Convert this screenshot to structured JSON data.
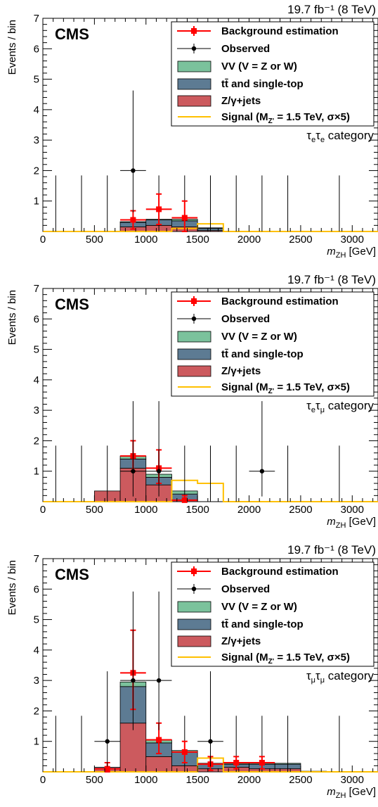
{
  "lumi_label": "19.7 fb⁻¹ (8 TeV)",
  "experiment": "CMS",
  "ylabel": "Events / bin",
  "xlabel_main": "m",
  "xlabel_sub": "ZH",
  "xlabel_unit": "[GeV]",
  "legend": {
    "bkg": "Background estimation",
    "obs": "Observed",
    "vv": "VV (V = Z or W)",
    "tt": "tt̄ and single-top",
    "zj": "Z/γ+jets",
    "sig": "Signal (M",
    "sig_sub": "Z'",
    "sig_rest": " = 1.5 TeV, σ×5)"
  },
  "colors": {
    "zj": "#cc5a5e",
    "tt": "#5d7b93",
    "vv": "#7bc29c",
    "signal": "#ffc000",
    "bkg": "#ff0000",
    "obs": "#000000"
  },
  "chart_data": [
    {
      "type": "histogram",
      "category": "τeτe category",
      "category_parts": [
        "τ",
        "e",
        "τ",
        "e",
        " category"
      ],
      "xlim": [
        0,
        3250
      ],
      "ylim": [
        0,
        7
      ],
      "xticks": [
        0,
        500,
        1000,
        1500,
        2000,
        2500,
        3000
      ],
      "yticks": [
        1,
        2,
        3,
        4,
        5,
        6,
        7
      ],
      "bin_edges": [
        0,
        250,
        500,
        750,
        1000,
        1250,
        1500,
        1750,
        2000,
        2250,
        2500,
        2750,
        3000,
        3250
      ],
      "stack": {
        "zjets": [
          0,
          0,
          0,
          0.15,
          0.2,
          0.15,
          0.03,
          0,
          0,
          0,
          0,
          0,
          0
        ],
        "ttbar": [
          0,
          0,
          0,
          0.15,
          0.18,
          0.2,
          0.07,
          0,
          0,
          0,
          0,
          0,
          0
        ],
        "vv": [
          0,
          0,
          0,
          0.02,
          0.02,
          0.05,
          0.02,
          0,
          0,
          0,
          0,
          0,
          0
        ]
      },
      "signal": [
        0,
        0,
        0,
        0,
        0,
        0.1,
        0.25,
        0,
        0,
        0,
        0,
        0,
        0
      ],
      "background_estimation": [
        {
          "x": 875,
          "y": 0.38,
          "err_up": 0.3,
          "err_down": 0.3
        },
        {
          "x": 1125,
          "y": 0.73,
          "err_up": 0.5,
          "err_down": 0.5
        },
        {
          "x": 1375,
          "y": 0.45,
          "err_up": 0.55,
          "err_down": 0.45
        }
      ],
      "observed": [
        {
          "x": 875,
          "y": 2,
          "err_up": 2.63,
          "err_down": 1.37,
          "xerr": 125
        }
      ],
      "zero_bins": [
        125,
        375,
        625,
        1125,
        1375,
        1625,
        1875,
        2125,
        2375,
        2875
      ],
      "zero_bin_err": 1.84
    },
    {
      "type": "histogram",
      "category": "τeτμ category",
      "category_parts": [
        "τ",
        "e",
        "τ",
        "μ",
        " category"
      ],
      "xlim": [
        0,
        3250
      ],
      "ylim": [
        0,
        7
      ],
      "xticks": [
        0,
        500,
        1000,
        1500,
        2000,
        2500,
        3000
      ],
      "yticks": [
        1,
        2,
        3,
        4,
        5,
        6,
        7
      ],
      "bin_edges": [
        0,
        250,
        500,
        750,
        1000,
        1250,
        1500,
        1750,
        2000,
        2250,
        2500,
        2750,
        3000,
        3250
      ],
      "stack": {
        "zjets": [
          0,
          0,
          0.35,
          1.1,
          0.55,
          0.05,
          0,
          0,
          0,
          0,
          0,
          0,
          0
        ],
        "ttbar": [
          0,
          0,
          0,
          0.3,
          0.25,
          0.2,
          0,
          0,
          0,
          0,
          0,
          0,
          0
        ],
        "vv": [
          0,
          0,
          0,
          0.1,
          0.1,
          0.1,
          0,
          0,
          0,
          0,
          0,
          0,
          0
        ]
      },
      "signal": [
        0,
        0,
        0,
        0,
        0,
        0.7,
        0.6,
        0,
        0,
        0,
        0,
        0,
        0
      ],
      "background_estimation": [
        {
          "x": 875,
          "y": 1.5,
          "err_up": 0.5,
          "err_down": 0.5
        },
        {
          "x": 1125,
          "y": 1.1,
          "err_up": 0.6,
          "err_down": 0.5
        },
        {
          "x": 1375,
          "y": 0.05,
          "err_up": 0.15,
          "err_down": 0.05
        }
      ],
      "observed": [
        {
          "x": 875,
          "y": 1,
          "err_up": 2.3,
          "err_down": 0.83,
          "xerr": 125
        },
        {
          "x": 1125,
          "y": 1,
          "err_up": 2.3,
          "err_down": 0.83,
          "xerr": 125
        },
        {
          "x": 2125,
          "y": 1,
          "err_up": 2.3,
          "err_down": 0.83,
          "xerr": 125
        }
      ],
      "zero_bins": [
        125,
        375,
        625,
        1375,
        1625,
        1875,
        2375,
        2875
      ],
      "zero_bin_err": 1.84
    },
    {
      "type": "histogram",
      "category": "τμτμ category",
      "category_parts": [
        "τ",
        "μ",
        "τ",
        "μ",
        " category"
      ],
      "xlim": [
        0,
        3250
      ],
      "ylim": [
        0,
        7
      ],
      "xticks": [
        0,
        500,
        1000,
        1500,
        2000,
        2500,
        3000
      ],
      "yticks": [
        1,
        2,
        3,
        4,
        5,
        6,
        7
      ],
      "bin_edges": [
        0,
        250,
        500,
        750,
        1000,
        1250,
        1500,
        1750,
        2000,
        2250,
        2500,
        2750,
        3000,
        3250
      ],
      "stack": {
        "zjets": [
          0,
          0,
          0.1,
          1.6,
          0.5,
          0.2,
          0.1,
          0.15,
          0.1,
          0.1,
          0,
          0,
          0
        ],
        "ttbar": [
          0,
          0,
          0.05,
          1.2,
          0.45,
          0.45,
          0.15,
          0.1,
          0.15,
          0.15,
          0.02,
          0,
          0
        ],
        "vv": [
          0,
          0,
          0,
          0.15,
          0.1,
          0.05,
          0.03,
          0.03,
          0.03,
          0.03,
          0,
          0,
          0
        ]
      },
      "signal": [
        0,
        0,
        0,
        0,
        0,
        0,
        0.45,
        0,
        0,
        0,
        0,
        0,
        0
      ],
      "background_estimation": [
        {
          "x": 625,
          "y": 0.1,
          "err_up": 0.2,
          "err_down": 0.1
        },
        {
          "x": 875,
          "y": 3.25,
          "err_up": 1.4,
          "err_down": 1.2
        },
        {
          "x": 1125,
          "y": 1.05,
          "err_up": 0.55,
          "err_down": 0.45
        },
        {
          "x": 1375,
          "y": 0.65,
          "err_up": 0.35,
          "err_down": 0.35
        },
        {
          "x": 1625,
          "y": 0.25,
          "err_up": 0.25,
          "err_down": 0.2
        },
        {
          "x": 1875,
          "y": 0.3,
          "err_up": 0.2,
          "err_down": 0.2
        },
        {
          "x": 2125,
          "y": 0.3,
          "err_up": 0.2,
          "err_down": 0.2
        }
      ],
      "observed": [
        {
          "x": 625,
          "y": 1,
          "err_up": 2.3,
          "err_down": 0.83,
          "xerr": 125
        },
        {
          "x": 875,
          "y": 3,
          "err_up": 2.92,
          "err_down": 1.63,
          "xerr": 125
        },
        {
          "x": 1125,
          "y": 3,
          "err_up": 2.92,
          "err_down": 1.63,
          "xerr": 125
        },
        {
          "x": 1625,
          "y": 1,
          "err_up": 2.3,
          "err_down": 0.83,
          "xerr": 125
        }
      ],
      "zero_bins": [
        125,
        375,
        1375,
        1875,
        2125,
        2375,
        2875
      ],
      "zero_bin_err": 1.84
    }
  ]
}
